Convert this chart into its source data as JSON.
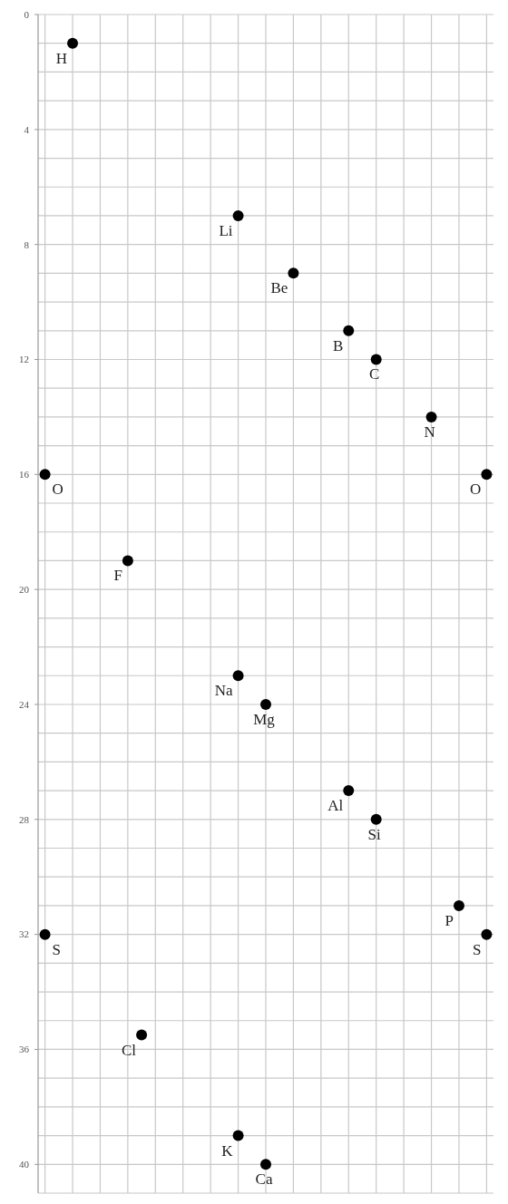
{
  "chart_data": {
    "type": "scatter",
    "categories": [
      null,
      null,
      null,
      null,
      null,
      null,
      null,
      null,
      null,
      null,
      null,
      null,
      null,
      null,
      null,
      null,
      null,
      null,
      null,
      null,
      null,
      null,
      null,
      null,
      null,
      null,
      null,
      null,
      null,
      null,
      null,
      null,
      null
    ],
    "ylim": [
      41,
      0
    ],
    "yticks": [
      0,
      4,
      8,
      12,
      16,
      20,
      24,
      28,
      32,
      36,
      40
    ],
    "grid": true,
    "marker": "circle",
    "series": [
      {
        "color": "#000000",
        "values": [
          16,
          null,
          1,
          null,
          null,
          null,
          null,
          null,
          null,
          null,
          null,
          null,
          null,
          null,
          7,
          null,
          null,
          null,
          9,
          null,
          null,
          null,
          11,
          null,
          12,
          null,
          null,
          null,
          14,
          null,
          null,
          null,
          16
        ],
        "value_labels": [
          "O",
          null,
          "H",
          null,
          null,
          null,
          null,
          null,
          null,
          null,
          null,
          null,
          null,
          null,
          "Li",
          null,
          null,
          null,
          "Be",
          null,
          null,
          null,
          "B",
          null,
          "C",
          null,
          null,
          null,
          "N",
          null,
          null,
          null,
          "O"
        ]
      },
      {
        "color": "#000000",
        "values": [
          32,
          null,
          null,
          null,
          null,
          null,
          19,
          null,
          null,
          null,
          null,
          null,
          null,
          null,
          23,
          null,
          24,
          null,
          null,
          null,
          null,
          null,
          27,
          null,
          28,
          null,
          null,
          null,
          null,
          null,
          31,
          null,
          32
        ],
        "value_labels": [
          "S",
          null,
          null,
          null,
          null,
          null,
          "F",
          null,
          null,
          null,
          null,
          null,
          null,
          null,
          "Na",
          null,
          "Mg",
          null,
          null,
          null,
          null,
          null,
          "Al",
          null,
          "Si",
          null,
          null,
          null,
          null,
          null,
          "P",
          null,
          "S"
        ]
      },
      {
        "color": "#000000",
        "values": [
          null,
          null,
          null,
          null,
          null,
          null,
          null,
          35.5,
          null,
          null,
          null,
          null,
          null,
          null,
          39,
          null,
          40,
          null,
          null,
          null,
          null,
          null,
          null,
          null,
          null,
          null,
          null,
          null,
          null,
          null,
          null,
          null,
          null
        ],
        "value_labels": [
          null,
          null,
          null,
          null,
          null,
          null,
          null,
          "Cl",
          null,
          null,
          null,
          null,
          null,
          null,
          "K",
          null,
          "Ca",
          null,
          null,
          null,
          null,
          null,
          null,
          null,
          null,
          null,
          null,
          null,
          null,
          null,
          null,
          null,
          null
        ]
      }
    ]
  }
}
